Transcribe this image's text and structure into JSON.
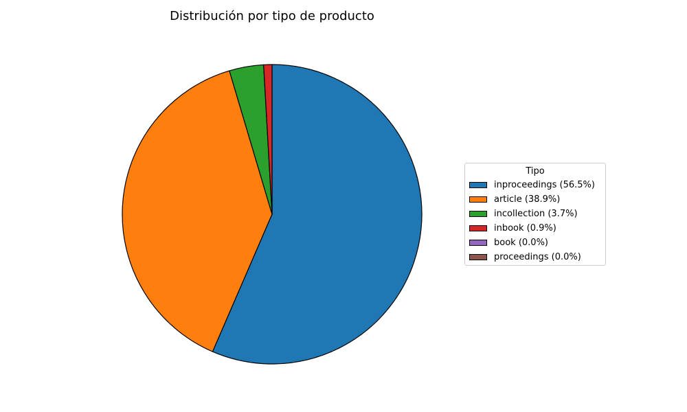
{
  "chart_data": {
    "type": "pie",
    "title": "Distribución por tipo de producto",
    "legend_title": "Tipo",
    "legend_position": "right",
    "start_angle_deg": 90,
    "direction": "clockwise",
    "slices": [
      {
        "label": "inproceedings",
        "percent": 56.5,
        "legend_label": "inproceedings (56.5%)",
        "color": "#1f77b4"
      },
      {
        "label": "article",
        "percent": 38.9,
        "legend_label": "article (38.9%)",
        "color": "#ff7f0e"
      },
      {
        "label": "incollection",
        "percent": 3.7,
        "legend_label": "incollection (3.7%)",
        "color": "#2ca02c"
      },
      {
        "label": "inbook",
        "percent": 0.9,
        "legend_label": "inbook (0.9%)",
        "color": "#d62728"
      },
      {
        "label": "book",
        "percent": 0.0,
        "legend_label": "book (0.0%)",
        "color": "#9467bd"
      },
      {
        "label": "proceedings",
        "percent": 0.0,
        "legend_label": "proceedings (0.0%)",
        "color": "#8c564b"
      }
    ]
  }
}
